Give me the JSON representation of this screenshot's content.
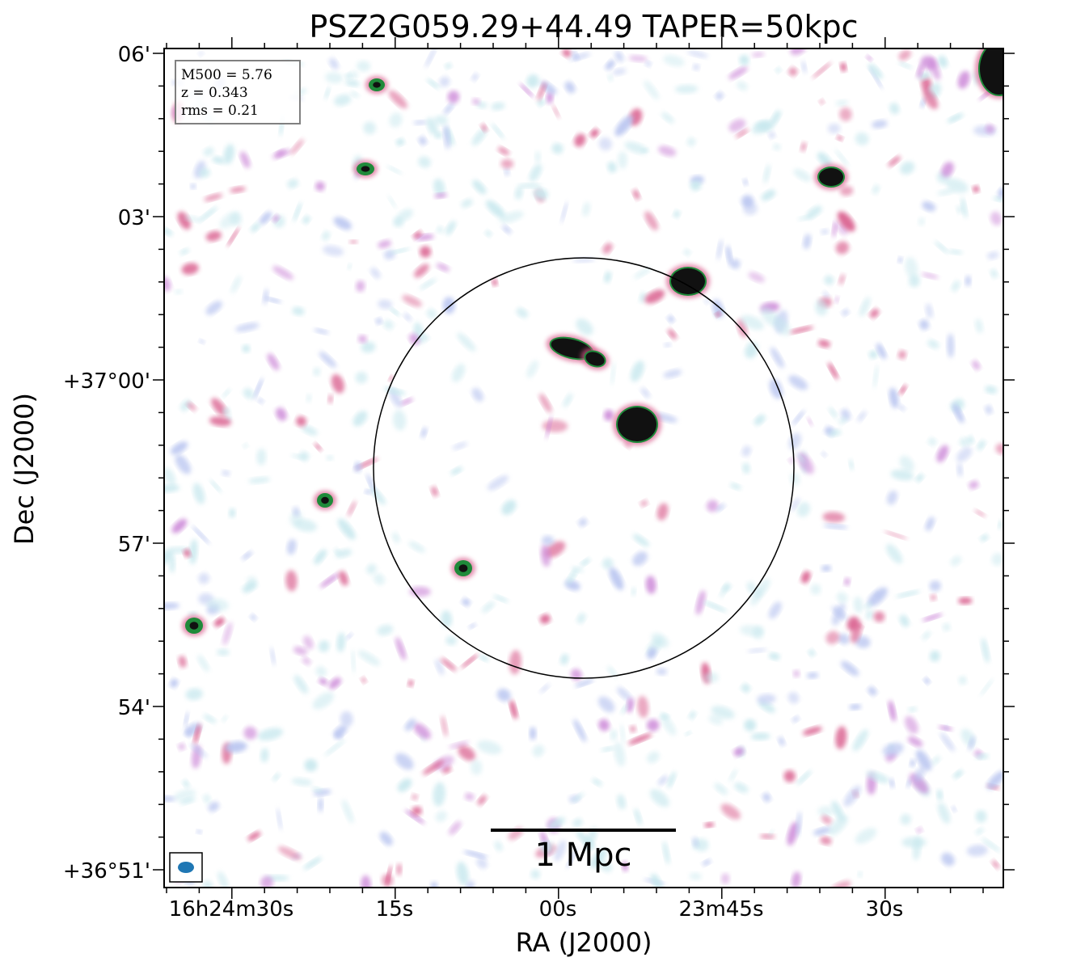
{
  "figure": {
    "title": "PSZ2G059.29+44.49 TAPER=50kpc",
    "xlabel": "RA (J2000)",
    "ylabel": "Dec (J2000)",
    "dec_ticks": [
      "06'",
      "03'",
      "+37°00'",
      "57'",
      "54'",
      "+36°51'"
    ],
    "ra_ticks": [
      "16h24m30s",
      "15s",
      "00s",
      "23m45s",
      "30s"
    ],
    "info": {
      "m500": "M500 = 5.76",
      "z": "z = 0.343",
      "rms": "rms = 0.21"
    },
    "scale_bar": "1 Mpc",
    "colors": {
      "faint": "#c8e8ee",
      "low": "#b8c4f0",
      "mid": "#cc88d8",
      "high": "#d85a8a",
      "peak": "#111111",
      "core": "#1f8a3a",
      "beam": "#1f77b4"
    }
  }
}
